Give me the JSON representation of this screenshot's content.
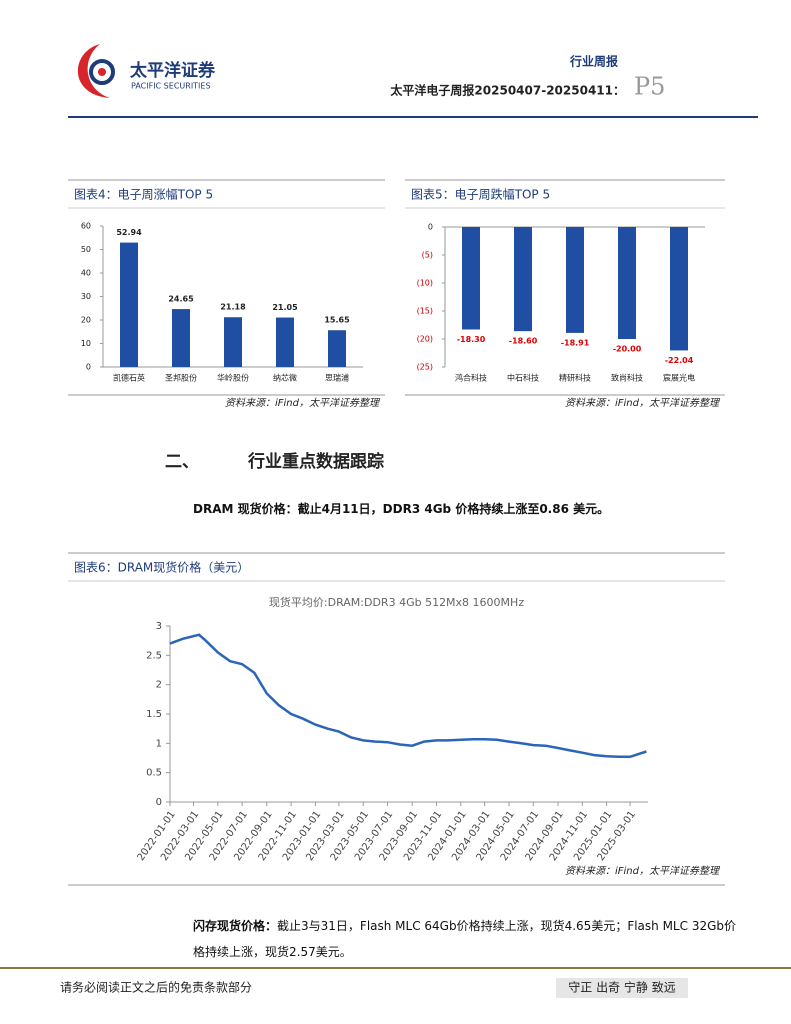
{
  "header": {
    "company": "太平洋证券",
    "company_en": "PACIFIC SECURITIES",
    "report_type": "行业周报",
    "report_title": "太平洋电子周报20250407-20250411：",
    "page": "P5"
  },
  "chart_data": [
    {
      "type": "bar",
      "panel_title": "图表4：电子周涨幅TOP 5",
      "categories": [
        "凯德石英",
        "圣邦股份",
        "华岭股份",
        "纳芯微",
        "思瑞浦"
      ],
      "values": [
        52.94,
        24.65,
        21.18,
        21.05,
        15.65
      ],
      "color": "#1f4ea3",
      "ylim": [
        0,
        60
      ],
      "yticks": [
        0,
        10,
        20,
        30,
        40,
        50,
        60
      ],
      "source": "资料来源：iFind，太平洋证券整理"
    },
    {
      "type": "bar",
      "panel_title": "图表5：电子周跌幅TOP 5",
      "categories": [
        "鸿合科技",
        "中石科技",
        "精研科技",
        "致尚科技",
        "宸展光电"
      ],
      "values": [
        -18.3,
        -18.6,
        -18.91,
        -20.0,
        -22.04
      ],
      "value_labels": [
        "-18.30",
        "-18.60",
        "-18.91",
        "-20.00",
        "-22.04"
      ],
      "color": "#1f4ea3",
      "ylim": [
        -25,
        0
      ],
      "yticks": [
        0,
        {
          "value": -5,
          "label": "(5)"
        },
        {
          "value": -10,
          "label": "(10)"
        },
        {
          "value": -15,
          "label": "(15)"
        },
        {
          "value": -20,
          "label": "(20)"
        },
        {
          "value": -25,
          "label": "(25)"
        }
      ],
      "source": "资料来源：iFind，太平洋证券整理"
    },
    {
      "type": "line",
      "panel_title": "图表6：DRAM现货价格（美元）",
      "title": "现货平均价:DRAM:DDR3 4Gb 512Mx8 1600MHz",
      "color": "#2b64b8",
      "x": [
        "2022-01-01",
        "2022-02-01",
        "2022-03-15",
        "2022-04-01",
        "2022-05-01",
        "2022-06-01",
        "2022-07-01",
        "2022-08-01",
        "2022-09-01",
        "2022-10-01",
        "2022-11-01",
        "2022-12-01",
        "2023-01-01",
        "2023-02-01",
        "2023-03-01",
        "2023-04-01",
        "2023-05-01",
        "2023-06-01",
        "2023-07-01",
        "2023-08-01",
        "2023-09-01",
        "2023-10-01",
        "2023-11-01",
        "2023-12-01",
        "2024-01-01",
        "2024-02-01",
        "2024-03-01",
        "2024-04-01",
        "2024-05-01",
        "2024-06-01",
        "2024-07-01",
        "2024-08-01",
        "2024-09-01",
        "2024-10-01",
        "2024-11-01",
        "2024-12-01",
        "2025-01-01",
        "2025-02-01",
        "2025-03-01",
        "2025-04-11"
      ],
      "values": [
        2.7,
        2.78,
        2.85,
        2.75,
        2.55,
        2.4,
        2.35,
        2.2,
        1.85,
        1.65,
        1.5,
        1.42,
        1.32,
        1.25,
        1.2,
        1.1,
        1.05,
        1.03,
        1.02,
        0.98,
        0.96,
        1.03,
        1.05,
        1.05,
        1.06,
        1.07,
        1.07,
        1.06,
        1.03,
        1.0,
        0.97,
        0.96,
        0.92,
        0.88,
        0.84,
        0.8,
        0.78,
        0.77,
        0.77,
        0.86
      ],
      "xlim": [
        "2022-01-01",
        "2025-04-15"
      ],
      "xticks": [
        "2022-01-01",
        "2022-03-01",
        "2022-05-01",
        "2022-07-01",
        "2022-09-01",
        "2022-11-01",
        "2023-01-01",
        "2023-03-01",
        "2023-05-01",
        "2023-07-01",
        "2023-09-01",
        "2023-11-01",
        "2024-01-01",
        "2024-03-01",
        "2024-05-01",
        "2024-07-01",
        "2024-09-01",
        "2024-11-01",
        "2025-01-01",
        "2025-03-01"
      ],
      "ylim": [
        0,
        3
      ],
      "yticks": [
        0,
        0.5,
        1,
        1.5,
        2,
        2.5,
        3
      ],
      "source": "资料来源：iFind，太平洋证券整理"
    }
  ],
  "section": {
    "number": "二、",
    "title": "行业重点数据跟踪"
  },
  "paragraphs": [
    {
      "label": "DRAM 现货价格：",
      "text": "截止4月11日，DDR3 4Gb 价格持续上涨至0.86 美元。"
    },
    {
      "label": "闪存现货价格：",
      "text": "截止3与31日，Flash MLC 64Gb价格持续上涨，现货4.65美元；Flash MLC 32Gb价格持续上涨，现货2.57美元。"
    }
  ],
  "footer": {
    "disclaimer": "请务必阅读正文之后的免责条款部分",
    "motto": "守正 出奇 宁静 致远"
  }
}
